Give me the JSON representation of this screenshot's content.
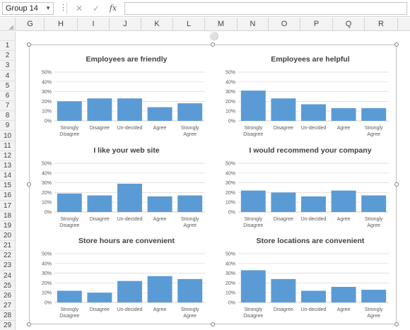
{
  "formula_bar": {
    "name_box": "Group 14",
    "fx_label": "fx",
    "formula": ""
  },
  "columns": [
    "G",
    "H",
    "I",
    "J",
    "K",
    "L",
    "M",
    "N",
    "O",
    "P",
    "Q",
    "R"
  ],
  "rows": [
    "1",
    "2",
    "3",
    "4",
    "5",
    "6",
    "7",
    "8",
    "9",
    "10",
    "11",
    "12",
    "13",
    "14",
    "15",
    "16",
    "17",
    "18",
    "19",
    "20",
    "21",
    "22",
    "23",
    "24",
    "25",
    "26",
    "27",
    "28",
    "29"
  ],
  "colors": {
    "bar": "#5b9bd5",
    "grid": "#d9d9d9",
    "axis": "#bfbfbf"
  },
  "chart_data": [
    {
      "type": "bar",
      "title": "Employees are friendly",
      "categories": [
        "Strongly Disagree",
        "Disagree",
        "Un-decided",
        "Agree",
        "Strongly Agree"
      ],
      "values": [
        20,
        23,
        23,
        14,
        18
      ],
      "yticks": [
        "0%",
        "10%",
        "20%",
        "30%",
        "40%",
        "50%"
      ],
      "ylim": [
        0,
        50
      ],
      "grid": true
    },
    {
      "type": "bar",
      "title": "Employees are helpful",
      "categories": [
        "Strongly Disagree",
        "Disagree",
        "Un-decided",
        "Agree",
        "Strongly Agree"
      ],
      "values": [
        31,
        23,
        17,
        13,
        13
      ],
      "yticks": [
        "0%",
        "10%",
        "20%",
        "30%",
        "40%",
        "50%"
      ],
      "ylim": [
        0,
        50
      ],
      "grid": true
    },
    {
      "type": "bar",
      "title": "I like your web site",
      "categories": [
        "Strongly Disagree",
        "Disagree",
        "Un-decided",
        "Agree",
        "Strongly Agree"
      ],
      "values": [
        19,
        17,
        29,
        16,
        17
      ],
      "yticks": [
        "0%",
        "10%",
        "20%",
        "30%",
        "40%",
        "50%"
      ],
      "ylim": [
        0,
        50
      ],
      "grid": true
    },
    {
      "type": "bar",
      "title": "I would recommend your company",
      "categories": [
        "Strongly Disagree",
        "Disagree",
        "Un-decided",
        "Agree",
        "Strongly Agree"
      ],
      "values": [
        22,
        20,
        16,
        22,
        17
      ],
      "yticks": [
        "0%",
        "10%",
        "20%",
        "30%",
        "40%",
        "50%"
      ],
      "ylim": [
        0,
        50
      ],
      "grid": true
    },
    {
      "type": "bar",
      "title": "Store hours are convenient",
      "categories": [
        "Strongly Disagree",
        "Disagree",
        "Un-decided",
        "Agree",
        "Strongly Agree"
      ],
      "values": [
        12,
        10,
        22,
        27,
        24
      ],
      "yticks": [
        "0%",
        "10%",
        "20%",
        "30%",
        "40%",
        "50%"
      ],
      "ylim": [
        0,
        50
      ],
      "grid": true
    },
    {
      "type": "bar",
      "title": "Store locations are convenient",
      "categories": [
        "Strongly Disagree",
        "Disagree",
        "Un-decided",
        "Agree",
        "Strongly Agree"
      ],
      "values": [
        33,
        24,
        12,
        16,
        13
      ],
      "yticks": [
        "0%",
        "10%",
        "20%",
        "30%",
        "40%",
        "50%"
      ],
      "ylim": [
        0,
        50
      ],
      "grid": true
    }
  ]
}
